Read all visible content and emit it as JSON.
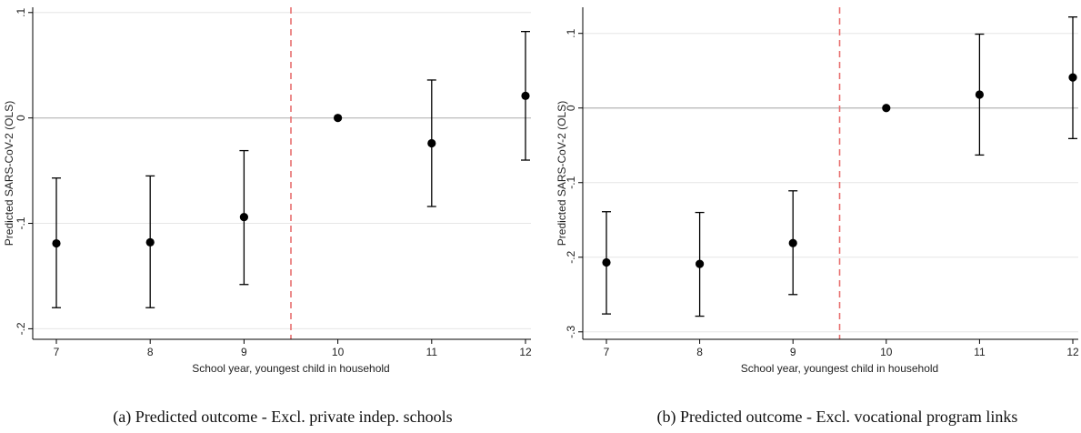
{
  "chart_data": [
    {
      "type": "scatter",
      "title": "",
      "xlabel": "School year, youngest child in household",
      "ylabel": "Predicted SARS-CoV-2 (OLS)",
      "caption": "(a) Predicted outcome - Excl. private indep. schools",
      "x": [
        7,
        8,
        9,
        10,
        11,
        12
      ],
      "xlim": [
        7,
        12
      ],
      "ylim": [
        -0.21,
        0.105
      ],
      "yticks": [
        0.1,
        0,
        -0.1,
        -0.2
      ],
      "ytick_labels": [
        ".1",
        "0",
        "-.1",
        "-.2"
      ],
      "xtick_labels": [
        "7",
        "8",
        "9",
        "10",
        "11",
        "12"
      ],
      "series": [
        {
          "values": [
            -0.119,
            -0.118,
            -0.094,
            0.0,
            -0.024,
            0.021
          ],
          "ci_low": [
            -0.18,
            -0.18,
            -0.158,
            0.0,
            -0.084,
            -0.04
          ],
          "ci_high": [
            -0.057,
            -0.055,
            -0.031,
            0.0,
            0.036,
            0.082
          ]
        }
      ],
      "reference_lines": {
        "horizontal_y": 0,
        "vertical_x": 9.5
      },
      "grid": true
    },
    {
      "type": "scatter",
      "title": "",
      "xlabel": "School year, youngest child in household",
      "ylabel": "Predicted SARS-CoV-2 (OLS)",
      "caption": "(b) Predicted outcome - Excl. vocational program links",
      "x": [
        7,
        8,
        9,
        10,
        11,
        12
      ],
      "xlim": [
        7,
        12
      ],
      "ylim": [
        -0.31,
        0.135
      ],
      "yticks": [
        0.1,
        0,
        -0.1,
        -0.2,
        -0.3
      ],
      "ytick_labels": [
        ".1",
        "0",
        "-.1",
        "-.2",
        "-.3"
      ],
      "xtick_labels": [
        "7",
        "8",
        "9",
        "10",
        "11",
        "12"
      ],
      "series": [
        {
          "values": [
            -0.207,
            -0.209,
            -0.181,
            0.0,
            0.018,
            0.041
          ],
          "ci_low": [
            -0.276,
            -0.279,
            -0.25,
            0.0,
            -0.063,
            -0.041
          ],
          "ci_high": [
            -0.139,
            -0.14,
            -0.111,
            0.0,
            0.099,
            0.122
          ]
        }
      ],
      "reference_lines": {
        "horizontal_y": 0,
        "vertical_x": 9.5
      },
      "grid": true
    }
  ],
  "colors": {
    "points": "#000000",
    "error_bars": "#000000",
    "zero_line": "#b4b4b4",
    "grid": "#e6e6e6",
    "reference_vertical": "#e8706f",
    "axis": "#000000"
  }
}
